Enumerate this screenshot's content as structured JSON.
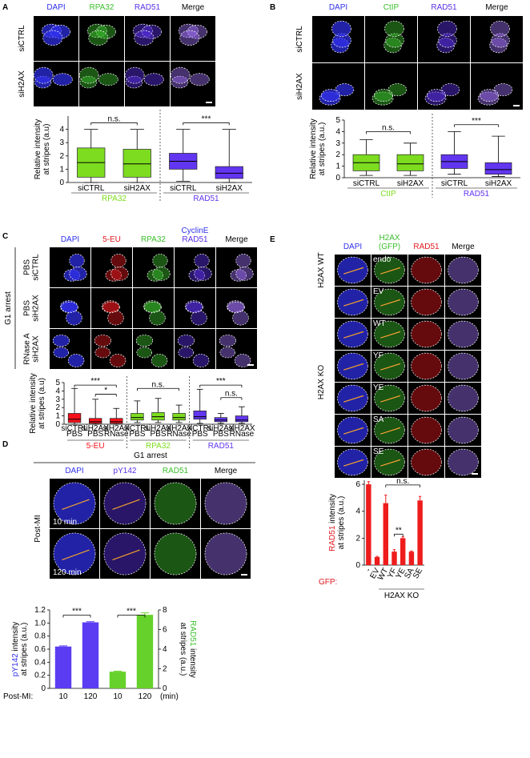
{
  "panels": [
    {
      "label": "A",
      "headers": [
        [
          {
            "text": "DAPI",
            "color": "#3030ee"
          }
        ],
        [
          {
            "text": "RPA32",
            "color": "#3cbf2c"
          }
        ],
        [
          {
            "text": "RAD51",
            "color": "#5a30e8"
          }
        ],
        [
          {
            "text": "Merge",
            "color": "#000000"
          }
        ]
      ],
      "rows": [
        [
          "siCTRL"
        ],
        [
          "siH2AX"
        ]
      ]
    },
    {
      "label": "B",
      "headers": [
        [
          {
            "text": "DAPI",
            "color": "#3030ee"
          }
        ],
        [
          {
            "text": "CtIP",
            "color": "#3cbf2c"
          }
        ],
        [
          {
            "text": "RAD51",
            "color": "#5a30e8"
          }
        ],
        [
          {
            "text": "Merge",
            "color": "#000000"
          }
        ]
      ],
      "rows": [
        [
          "siCTRL"
        ],
        [
          "siH2AX"
        ]
      ]
    },
    {
      "label": "C",
      "headers": [
        [
          {
            "text": "DAPI",
            "color": "#3030ee"
          }
        ],
        [
          {
            "text": "5-EU",
            "color": "#e0191f"
          }
        ],
        [
          {
            "text": "RPA32",
            "color": "#3cbf2c"
          }
        ],
        [
          {
            "text": "CyclinE",
            "color": "#3030ee"
          },
          {
            "text": "RAD51",
            "color": "#5a30e8"
          }
        ],
        [
          {
            "text": "Merge",
            "color": "#000000"
          }
        ]
      ],
      "rows": [
        [
          "PBS",
          "siCTRL"
        ],
        [
          "PBS",
          "siH2AX"
        ],
        [
          "RNase A",
          "siH2AX"
        ]
      ],
      "side_labels": [
        "G1 arrest"
      ]
    },
    {
      "label": "D",
      "title": "G1 arrest",
      "headers": [
        [
          {
            "text": "DAPI",
            "color": "#3030ee"
          }
        ],
        [
          {
            "text": "pY142",
            "color": "#5a30e8"
          }
        ],
        [
          {
            "text": "RAD51",
            "color": "#3cbf2c"
          }
        ],
        [
          {
            "text": "Merge",
            "color": "#000000"
          }
        ]
      ],
      "rows": [
        [
          "10 min"
        ],
        [
          "120 min"
        ]
      ],
      "side_labels": [
        "Post-MI"
      ]
    },
    {
      "label": "E",
      "headers": [
        [
          {
            "text": "DAPI",
            "color": "#3030ee"
          }
        ],
        [
          {
            "text": "H2AX",
            "color": "#3cbf2c"
          },
          {
            "text": "(GFP)",
            "color": "#3cbf2c"
          }
        ],
        [
          {
            "text": "RAD51",
            "color": "#e0191f"
          }
        ],
        [
          {
            "text": "Merge",
            "color": "#000000"
          }
        ]
      ],
      "cell_labels": [
        "endo",
        "EV",
        "WT",
        "YF",
        "YE",
        "SA",
        "SE"
      ],
      "side_labels": [
        "H2AX WT",
        "H2AX KO"
      ]
    }
  ],
  "chart_data": [
    {
      "type": "box",
      "categories": [
        "siCTRL",
        "siH2AX",
        "siCTRL",
        "siH2AX"
      ],
      "groups": [
        {
          "name": "RPA32",
          "color": "#7ddc1f"
        },
        {
          "name": "RAD51",
          "color": "#6236f0"
        }
      ],
      "boxes": [
        {
          "min": 0,
          "q1": 0.4,
          "median": 1.5,
          "q3": 2.6,
          "max": 4
        },
        {
          "min": 0,
          "q1": 0.4,
          "median": 1.4,
          "q3": 2.5,
          "max": 4
        },
        {
          "min": 0.1,
          "q1": 1.0,
          "median": 1.6,
          "q3": 2.2,
          "max": 4
        },
        {
          "min": 0,
          "q1": 0.3,
          "median": 0.7,
          "q3": 1.2,
          "max": 4
        }
      ],
      "ylim": [
        0,
        5
      ],
      "yticks": [
        0,
        1,
        2,
        3,
        4
      ],
      "ylabel": [
        [
          {
            "text": "Relative intensity"
          }
        ],
        [
          {
            "text": "at stripes (a.u)"
          }
        ]
      ],
      "annotations": [
        "n.s.",
        "***"
      ]
    },
    {
      "type": "box",
      "categories": [
        "siCTRL",
        "siH2AX",
        "siCTRL",
        "siH2AX"
      ],
      "groups": [
        {
          "name": "CtIP",
          "color": "#7ddc1f"
        },
        {
          "name": "RAD51",
          "color": "#6236f0"
        }
      ],
      "boxes": [
        {
          "min": 0.2,
          "q1": 0.6,
          "median": 1.3,
          "q3": 2.0,
          "max": 3.3
        },
        {
          "min": 0.2,
          "q1": 0.6,
          "median": 1.2,
          "q3": 2.0,
          "max": 3.0
        },
        {
          "min": 0.3,
          "q1": 0.8,
          "median": 1.4,
          "q3": 2.0,
          "max": 4.0
        },
        {
          "min": 0.1,
          "q1": 0.3,
          "median": 0.7,
          "q3": 1.3,
          "max": 3.6
        }
      ],
      "ylim": [
        0,
        5
      ],
      "yticks": [
        0,
        1,
        2,
        3,
        4,
        5
      ],
      "ylabel": [
        [
          {
            "text": "Relative intensity"
          }
        ],
        [
          {
            "text": "at stripes (a.u.)"
          }
        ]
      ],
      "annotations": [
        "n.s.",
        "***"
      ]
    },
    {
      "type": "box",
      "categories": [
        [
          "siCTRL",
          "PBS"
        ],
        [
          "siH2AX",
          "PBS"
        ],
        [
          "siH2AX",
          "RNase"
        ],
        [
          "siCTRL",
          "PBS"
        ],
        [
          "siH2AX",
          "PBS"
        ],
        [
          "siH2AX",
          "RNase"
        ],
        [
          "siCTRL",
          "PBS"
        ],
        [
          "siH2AX",
          "PBS"
        ],
        [
          "siH2AX",
          "RNase"
        ]
      ],
      "groups": [
        {
          "name": "5-EU",
          "color": "#f5101a"
        },
        {
          "name": "RPA32",
          "color": "#7ddc1f"
        },
        {
          "name": "RAD51",
          "color": "#6236f0"
        }
      ],
      "boxes": [
        {
          "min": 0,
          "q1": 0.2,
          "median": 0.6,
          "q3": 1.3,
          "max": 4.3
        },
        {
          "min": 0,
          "q1": 0.1,
          "median": 0.3,
          "q3": 0.7,
          "max": 3.0
        },
        {
          "min": 0,
          "q1": 0.1,
          "median": 0.3,
          "q3": 0.7,
          "max": 1.9
        },
        {
          "min": 0.2,
          "q1": 0.5,
          "median": 0.8,
          "q3": 1.3,
          "max": 2.8
        },
        {
          "min": 0.2,
          "q1": 0.5,
          "median": 0.9,
          "q3": 1.4,
          "max": 3.1
        },
        {
          "min": 0.2,
          "q1": 0.5,
          "median": 0.8,
          "q3": 1.3,
          "max": 2.3
        },
        {
          "min": 0.1,
          "q1": 0.6,
          "median": 0.9,
          "q3": 1.6,
          "max": 4.2
        },
        {
          "min": 0.1,
          "q1": 0.3,
          "median": 0.5,
          "q3": 0.8,
          "max": 1.3
        },
        {
          "min": 0.1,
          "q1": 0.3,
          "median": 0.5,
          "q3": 1.0,
          "max": 2.1
        }
      ],
      "ylim": [
        0,
        5
      ],
      "yticks": [
        0,
        1,
        2,
        3,
        4,
        5
      ],
      "ylabel": [
        [
          {
            "text": "Relative intensity"
          }
        ],
        [
          {
            "text": "at stripes (a.u)"
          }
        ]
      ],
      "annotations": [
        "***",
        "*",
        "n.s.",
        "***",
        "n.s."
      ]
    },
    {
      "type": "bar",
      "categories": [
        "10",
        "120",
        "10",
        "120"
      ],
      "series": [
        {
          "color": "#5b3cf2",
          "values": [
            0.64,
            1.01,
            null,
            null
          ],
          "errors": [
            0.01,
            0.01,
            null,
            null
          ]
        },
        {
          "color": "#66d12a",
          "axis": "y2",
          "values": [
            null,
            null,
            1.7,
            7.5
          ],
          "errors": [
            null,
            null,
            0.05,
            0.2
          ]
        }
      ],
      "ylim": [
        0,
        1.2
      ],
      "yticks": [
        0,
        0.2,
        0.4,
        0.6,
        0.8,
        {
          "value": 1,
          "label": "1.0"
        },
        1.2
      ],
      "y2lim": [
        0,
        8
      ],
      "y2ticks": [
        0,
        2,
        4,
        6,
        8
      ],
      "ylabel": [
        [
          {
            "text": "pY142",
            "color": "#3030ee"
          },
          {
            "text": " intensity"
          }
        ],
        [
          {
            "text": "at stripes (a.u.)"
          }
        ]
      ],
      "y2label": [
        [
          {
            "text": "RAD51",
            "color": "#3cbf2c"
          },
          {
            "text": " intensity"
          }
        ],
        [
          {
            "text": "at stripes (a.u.)"
          }
        ]
      ],
      "x_prefix": "Post-MI:",
      "x_suffix": "(min)",
      "annotations": [
        "***",
        "***"
      ]
    },
    {
      "type": "bar",
      "categories": [
        "-",
        "EV",
        "WT",
        "YF",
        "YE",
        "SA",
        "SE"
      ],
      "color": "#ee1c1c",
      "values": [
        6.0,
        0.6,
        4.6,
        1.0,
        2.0,
        1.0,
        4.8
      ],
      "errors": [
        0.2,
        0.05,
        0.6,
        0.15,
        0.1,
        0.05,
        0.3
      ],
      "ylim": [
        0,
        6.3
      ],
      "yticks": [
        0,
        2,
        4,
        6
      ],
      "ylabel": [
        [
          {
            "text": "RAD51",
            "color": "#e0191f"
          },
          {
            "text": " intensity"
          }
        ],
        [
          {
            "text": "at stripes (a.u.)"
          }
        ]
      ],
      "x_prefix": "GFP:",
      "x_prefix_color": "#e0191f",
      "group_label": "H2AX KO",
      "annotations": [
        "n.s.",
        "**"
      ]
    }
  ]
}
